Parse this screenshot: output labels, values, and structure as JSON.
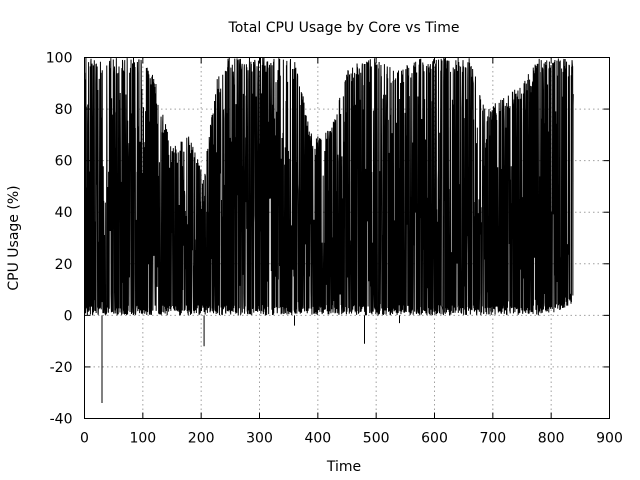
{
  "chart_data": {
    "type": "line",
    "title": "Total CPU Usage by Core vs Time",
    "xlabel": "Time",
    "ylabel": "CPU Usage (%)",
    "xlim": [
      0,
      900
    ],
    "ylim": [
      -40,
      100
    ],
    "xticks": [
      0,
      100,
      200,
      300,
      400,
      500,
      600,
      700,
      800,
      900
    ],
    "yticks": [
      -40,
      -20,
      0,
      20,
      40,
      60,
      80,
      100
    ],
    "grid": true,
    "legend": "none",
    "colors": {
      "series": "#000000",
      "grid": "#a0a0a0"
    },
    "x_range_of_data": [
      0,
      838
    ],
    "envelope": [
      {
        "x": 0,
        "min": 0,
        "max": 100
      },
      {
        "x": 30,
        "min": -34,
        "max": 100
      },
      {
        "x": 60,
        "min": 0,
        "max": 100
      },
      {
        "x": 100,
        "min": 0,
        "max": 100
      },
      {
        "x": 120,
        "min": 0,
        "max": 92
      },
      {
        "x": 150,
        "min": 0,
        "max": 65
      },
      {
        "x": 180,
        "min": 0,
        "max": 70
      },
      {
        "x": 205,
        "min": -12,
        "max": 55
      },
      {
        "x": 225,
        "min": 0,
        "max": 90
      },
      {
        "x": 240,
        "min": 0,
        "max": 100
      },
      {
        "x": 280,
        "min": 0,
        "max": 100
      },
      {
        "x": 300,
        "min": 0,
        "max": 100
      },
      {
        "x": 330,
        "min": 0,
        "max": 100
      },
      {
        "x": 360,
        "min": -4,
        "max": 100
      },
      {
        "x": 390,
        "min": 0,
        "max": 70
      },
      {
        "x": 420,
        "min": 0,
        "max": 72
      },
      {
        "x": 450,
        "min": 0,
        "max": 95
      },
      {
        "x": 480,
        "min": -11,
        "max": 100
      },
      {
        "x": 510,
        "min": 0,
        "max": 100
      },
      {
        "x": 540,
        "min": -3,
        "max": 95
      },
      {
        "x": 570,
        "min": 0,
        "max": 100
      },
      {
        "x": 600,
        "min": 0,
        "max": 100
      },
      {
        "x": 630,
        "min": 0,
        "max": 100
      },
      {
        "x": 660,
        "min": 0,
        "max": 100
      },
      {
        "x": 690,
        "min": 0,
        "max": 80
      },
      {
        "x": 720,
        "min": 0,
        "max": 85
      },
      {
        "x": 750,
        "min": 0,
        "max": 90
      },
      {
        "x": 780,
        "min": 0,
        "max": 100
      },
      {
        "x": 800,
        "min": 0,
        "max": 100
      },
      {
        "x": 838,
        "min": 5,
        "max": 100
      }
    ]
  }
}
